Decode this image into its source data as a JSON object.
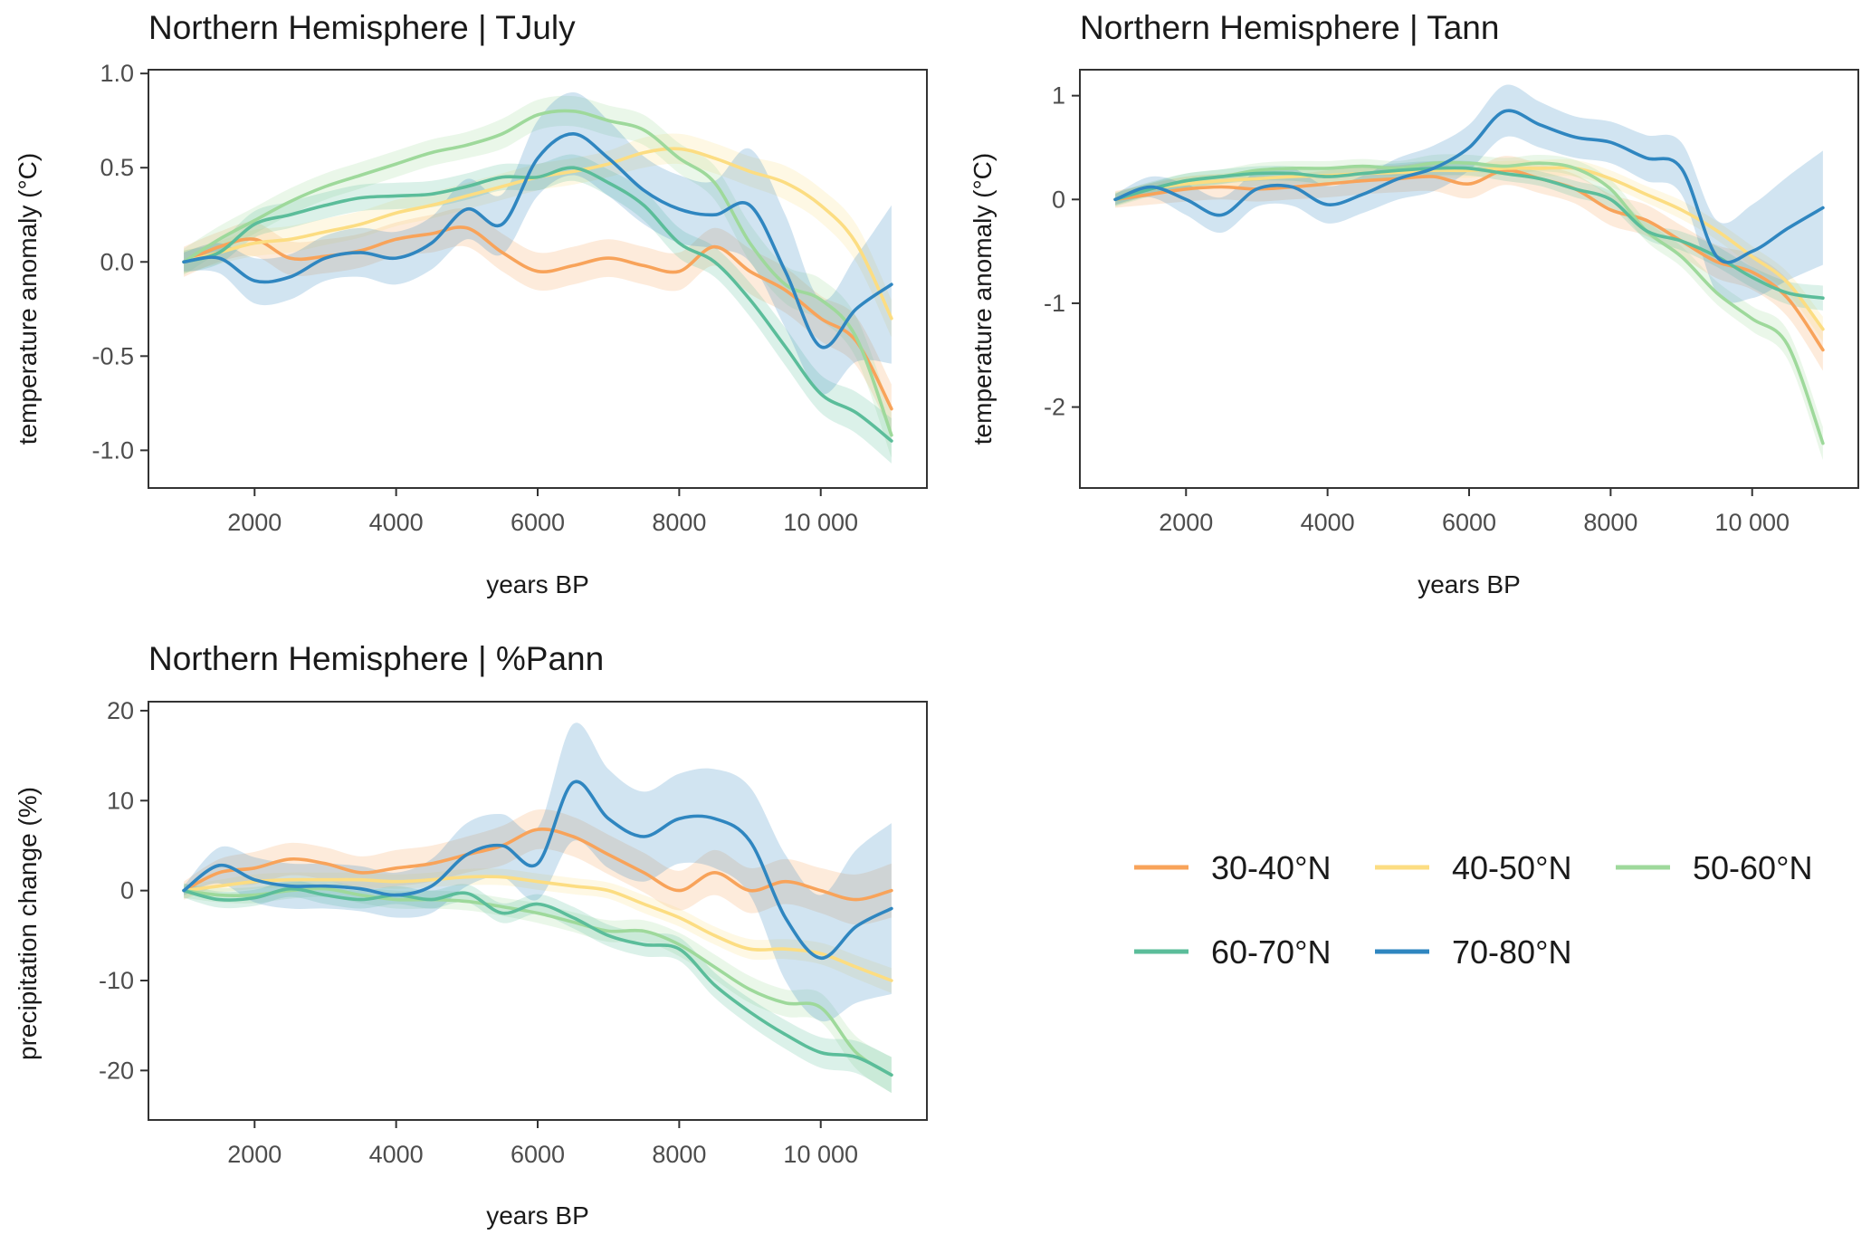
{
  "colors": {
    "30-40°N": "#F8A35A",
    "40-50°N": "#FCDD82",
    "50-60°N": "#9ED99B",
    "60-70°N": "#5BBD9A",
    "70-80°N": "#2F86C0"
  },
  "legend": {
    "items": [
      {
        "label": "30-40°N",
        "color": "#F8A35A"
      },
      {
        "label": "40-50°N",
        "color": "#FCDD82"
      },
      {
        "label": "50-60°N",
        "color": "#9ED99B"
      },
      {
        "label": "60-70°N",
        "color": "#5BBD9A"
      },
      {
        "label": "70-80°N",
        "color": "#2F86C0"
      }
    ]
  },
  "chart_data": [
    {
      "type": "line",
      "title": "Northern Hemisphere | TJuly",
      "xlabel": "years BP",
      "ylabel": "temperature anomaly (°C)",
      "xlim": [
        500,
        11500
      ],
      "ylim": [
        -1.2,
        1.02
      ],
      "xticks": [
        2000,
        4000,
        6000,
        8000,
        10000
      ],
      "xtick_labels": [
        "2000",
        "4000",
        "6000",
        "8000",
        "10 000"
      ],
      "yticks": [
        1.0,
        0.5,
        0.0,
        -0.5,
        -1.0
      ],
      "ytick_labels": [
        "1.0",
        "0.5",
        "0.0",
        "-0.5",
        "-1.0"
      ],
      "x": [
        1000,
        1500,
        2000,
        2500,
        3000,
        3500,
        4000,
        4500,
        5000,
        5500,
        6000,
        6500,
        7000,
        7500,
        8000,
        8500,
        9000,
        9500,
        10000,
        10500,
        11000
      ],
      "series": [
        {
          "name": "30-40°N",
          "values": [
            0.0,
            0.08,
            0.12,
            0.02,
            0.03,
            0.06,
            0.12,
            0.15,
            0.18,
            0.05,
            -0.05,
            -0.02,
            0.02,
            -0.02,
            -0.05,
            0.08,
            -0.05,
            -0.15,
            -0.3,
            -0.42,
            -0.78
          ],
          "band": [
            0.08,
            0.08,
            0.09,
            0.09,
            0.09,
            0.09,
            0.09,
            0.1,
            0.1,
            0.1,
            0.1,
            0.1,
            0.1,
            0.1,
            0.1,
            0.1,
            0.12,
            0.12,
            0.12,
            0.13,
            0.13
          ]
        },
        {
          "name": "40-50°N",
          "values": [
            0.0,
            0.05,
            0.1,
            0.12,
            0.16,
            0.2,
            0.26,
            0.3,
            0.35,
            0.4,
            0.45,
            0.48,
            0.52,
            0.58,
            0.6,
            0.55,
            0.48,
            0.42,
            0.3,
            0.1,
            -0.3
          ],
          "band": [
            0.06,
            0.06,
            0.07,
            0.07,
            0.07,
            0.07,
            0.07,
            0.07,
            0.07,
            0.07,
            0.07,
            0.07,
            0.07,
            0.08,
            0.08,
            0.08,
            0.08,
            0.09,
            0.09,
            0.1,
            0.1
          ]
        },
        {
          "name": "50-60°N",
          "values": [
            0.0,
            0.12,
            0.22,
            0.32,
            0.4,
            0.46,
            0.52,
            0.58,
            0.62,
            0.68,
            0.78,
            0.8,
            0.75,
            0.7,
            0.55,
            0.42,
            0.1,
            -0.12,
            -0.2,
            -0.4,
            -0.92
          ],
          "band": [
            0.07,
            0.07,
            0.07,
            0.07,
            0.07,
            0.07,
            0.07,
            0.07,
            0.07,
            0.08,
            0.08,
            0.08,
            0.08,
            0.08,
            0.08,
            0.09,
            0.1,
            0.1,
            0.11,
            0.11,
            0.12
          ]
        },
        {
          "name": "60-70°N",
          "values": [
            0.0,
            0.05,
            0.2,
            0.25,
            0.3,
            0.34,
            0.35,
            0.36,
            0.4,
            0.45,
            0.45,
            0.5,
            0.42,
            0.3,
            0.1,
            0.0,
            -0.2,
            -0.45,
            -0.7,
            -0.8,
            -0.95
          ],
          "band": [
            0.06,
            0.06,
            0.07,
            0.07,
            0.07,
            0.07,
            0.07,
            0.07,
            0.07,
            0.07,
            0.07,
            0.07,
            0.07,
            0.08,
            0.08,
            0.08,
            0.09,
            0.1,
            0.1,
            0.11,
            0.12
          ]
        },
        {
          "name": "70-80°N",
          "values": [
            0.0,
            0.02,
            -0.1,
            -0.08,
            0.02,
            0.05,
            0.02,
            0.1,
            0.28,
            0.2,
            0.55,
            0.68,
            0.55,
            0.38,
            0.28,
            0.25,
            0.3,
            -0.05,
            -0.45,
            -0.25,
            -0.12
          ],
          "band": [
            0.05,
            0.08,
            0.12,
            0.12,
            0.12,
            0.13,
            0.14,
            0.14,
            0.16,
            0.16,
            0.2,
            0.22,
            0.2,
            0.18,
            0.18,
            0.18,
            0.3,
            0.3,
            0.25,
            0.28,
            0.42
          ]
        }
      ]
    },
    {
      "type": "line",
      "title": "Northern Hemisphere | Tann",
      "xlabel": "years BP",
      "ylabel": "temperature anomaly (°C)",
      "xlim": [
        500,
        11500
      ],
      "ylim": [
        -2.78,
        1.25
      ],
      "xticks": [
        2000,
        4000,
        6000,
        8000,
        10000
      ],
      "xtick_labels": [
        "2000",
        "4000",
        "6000",
        "8000",
        "10 000"
      ],
      "yticks": [
        1,
        0,
        -1,
        -2
      ],
      "ytick_labels": [
        "1",
        "0",
        "-1",
        "-2"
      ],
      "x": [
        1000,
        1500,
        2000,
        2500,
        3000,
        3500,
        4000,
        4500,
        5000,
        5500,
        6000,
        6500,
        7000,
        7500,
        8000,
        8500,
        9000,
        9500,
        10000,
        10500,
        11000
      ],
      "series": [
        {
          "name": "30-40°N",
          "values": [
            0.0,
            0.05,
            0.1,
            0.12,
            0.1,
            0.12,
            0.15,
            0.18,
            0.2,
            0.22,
            0.15,
            0.28,
            0.2,
            0.1,
            -0.1,
            -0.2,
            -0.4,
            -0.6,
            -0.7,
            -0.95,
            -1.45
          ],
          "band": [
            0.08,
            0.1,
            0.12,
            0.12,
            0.12,
            0.12,
            0.13,
            0.13,
            0.13,
            0.14,
            0.14,
            0.14,
            0.14,
            0.14,
            0.15,
            0.15,
            0.15,
            0.16,
            0.17,
            0.18,
            0.2
          ]
        },
        {
          "name": "40-50°N",
          "values": [
            0.0,
            0.1,
            0.15,
            0.18,
            0.2,
            0.22,
            0.23,
            0.25,
            0.26,
            0.28,
            0.28,
            0.3,
            0.3,
            0.3,
            0.2,
            0.05,
            -0.1,
            -0.3,
            -0.55,
            -0.8,
            -1.25
          ],
          "band": [
            0.06,
            0.06,
            0.07,
            0.07,
            0.07,
            0.07,
            0.07,
            0.07,
            0.07,
            0.07,
            0.07,
            0.07,
            0.08,
            0.08,
            0.08,
            0.08,
            0.09,
            0.09,
            0.1,
            0.1,
            0.12
          ]
        },
        {
          "name": "50-60°N",
          "values": [
            0.0,
            0.1,
            0.18,
            0.22,
            0.28,
            0.3,
            0.3,
            0.32,
            0.3,
            0.35,
            0.35,
            0.32,
            0.35,
            0.3,
            0.1,
            -0.3,
            -0.55,
            -0.9,
            -1.15,
            -1.4,
            -2.35
          ],
          "band": [
            0.07,
            0.07,
            0.07,
            0.07,
            0.07,
            0.07,
            0.07,
            0.07,
            0.07,
            0.08,
            0.08,
            0.08,
            0.08,
            0.08,
            0.09,
            0.1,
            0.1,
            0.11,
            0.12,
            0.14,
            0.16
          ]
        },
        {
          "name": "60-70°N",
          "values": [
            0.0,
            0.1,
            0.18,
            0.22,
            0.25,
            0.25,
            0.22,
            0.25,
            0.28,
            0.3,
            0.3,
            0.25,
            0.2,
            0.1,
            0.0,
            -0.3,
            -0.4,
            -0.55,
            -0.75,
            -0.9,
            -0.95
          ],
          "band": [
            0.06,
            0.06,
            0.07,
            0.07,
            0.07,
            0.07,
            0.07,
            0.07,
            0.07,
            0.07,
            0.07,
            0.07,
            0.07,
            0.08,
            0.08,
            0.08,
            0.09,
            0.1,
            0.1,
            0.11,
            0.12
          ]
        },
        {
          "name": "70-80°N",
          "values": [
            0.0,
            0.12,
            0.0,
            -0.15,
            0.1,
            0.12,
            -0.05,
            0.05,
            0.2,
            0.3,
            0.5,
            0.85,
            0.72,
            0.6,
            0.55,
            0.4,
            0.3,
            -0.55,
            -0.5,
            -0.28,
            -0.08
          ],
          "band": [
            0.05,
            0.1,
            0.15,
            0.17,
            0.17,
            0.18,
            0.18,
            0.18,
            0.2,
            0.22,
            0.22,
            0.25,
            0.22,
            0.2,
            0.2,
            0.22,
            0.25,
            0.35,
            0.45,
            0.5,
            0.55
          ]
        }
      ]
    },
    {
      "type": "line",
      "title": "Northern Hemisphere | %Pann",
      "xlabel": "years BP",
      "ylabel": "precipitation change (%)",
      "xlim": [
        500,
        11500
      ],
      "ylim": [
        -25.5,
        21
      ],
      "xticks": [
        2000,
        4000,
        6000,
        8000,
        10000
      ],
      "xtick_labels": [
        "2000",
        "4000",
        "6000",
        "8000",
        "10 000"
      ],
      "yticks": [
        20,
        10,
        0,
        -10,
        -20
      ],
      "ytick_labels": [
        "20",
        "10",
        "0",
        "-10",
        "-20"
      ],
      "x": [
        1000,
        1500,
        2000,
        2500,
        3000,
        3500,
        4000,
        4500,
        5000,
        5500,
        6000,
        6500,
        7000,
        7500,
        8000,
        8500,
        9000,
        9500,
        10000,
        10500,
        11000
      ],
      "series": [
        {
          "name": "30-40°N",
          "values": [
            0.0,
            2.0,
            2.5,
            3.5,
            3.0,
            2.0,
            2.5,
            3.0,
            4.0,
            5.0,
            6.8,
            6.0,
            4.0,
            2.0,
            0.0,
            2.0,
            0.0,
            1.0,
            0.0,
            -1.0,
            0.0
          ],
          "band": [
            1.0,
            1.5,
            1.8,
            1.8,
            1.8,
            1.8,
            2.0,
            2.0,
            2.0,
            2.2,
            2.2,
            2.2,
            2.2,
            2.2,
            2.2,
            2.5,
            2.5,
            2.5,
            2.5,
            2.8,
            3.0
          ]
        },
        {
          "name": "40-50°N",
          "values": [
            0.0,
            0.5,
            1.0,
            1.2,
            1.2,
            1.2,
            1.0,
            1.2,
            1.5,
            1.5,
            1.0,
            0.5,
            0.0,
            -1.5,
            -3.0,
            -5.0,
            -6.5,
            -6.5,
            -7.0,
            -8.5,
            -10.0
          ],
          "band": [
            0.6,
            0.7,
            0.8,
            0.8,
            0.8,
            0.8,
            0.8,
            0.8,
            0.9,
            0.9,
            0.9,
            0.9,
            0.9,
            1.0,
            1.0,
            1.0,
            1.1,
            1.1,
            1.2,
            1.3,
            1.4
          ]
        },
        {
          "name": "50-60°N",
          "values": [
            0.0,
            -0.5,
            -0.5,
            0.0,
            0.2,
            -0.5,
            -1.0,
            -1.0,
            -1.2,
            -1.8,
            -2.5,
            -3.5,
            -4.5,
            -4.5,
            -6.0,
            -8.5,
            -11.0,
            -12.5,
            -13.0,
            -18.0,
            -20.5
          ],
          "band": [
            0.8,
            0.8,
            0.9,
            0.9,
            0.9,
            0.9,
            1.0,
            1.0,
            1.0,
            1.0,
            1.1,
            1.1,
            1.2,
            1.2,
            1.3,
            1.4,
            1.5,
            1.5,
            1.6,
            1.8,
            2.0
          ]
        },
        {
          "name": "60-70°N",
          "values": [
            0.0,
            -1.0,
            -0.8,
            0.2,
            -0.5,
            -1.0,
            -0.5,
            -1.0,
            -0.3,
            -2.5,
            -1.5,
            -3.0,
            -5.0,
            -6.0,
            -6.5,
            -10.5,
            -13.5,
            -16.0,
            -18.0,
            -18.5,
            -20.5
          ],
          "band": [
            0.8,
            0.9,
            0.9,
            0.9,
            1.0,
            1.0,
            1.0,
            1.0,
            1.0,
            1.1,
            1.1,
            1.2,
            1.2,
            1.3,
            1.3,
            1.4,
            1.5,
            1.6,
            1.7,
            1.8,
            2.0
          ]
        },
        {
          "name": "70-80°N",
          "values": [
            0.0,
            2.8,
            1.2,
            0.5,
            0.5,
            0.2,
            -0.5,
            0.5,
            4.0,
            5.0,
            3.0,
            12.0,
            8.0,
            6.0,
            8.0,
            8.0,
            5.5,
            -3.0,
            -7.5,
            -4.0,
            -2.0
          ],
          "band": [
            0.5,
            2.0,
            2.5,
            2.5,
            2.5,
            2.5,
            2.5,
            3.0,
            3.5,
            3.5,
            4.0,
            6.5,
            5.5,
            5.0,
            5.0,
            5.5,
            6.0,
            7.0,
            7.0,
            8.5,
            9.5
          ]
        }
      ]
    }
  ]
}
